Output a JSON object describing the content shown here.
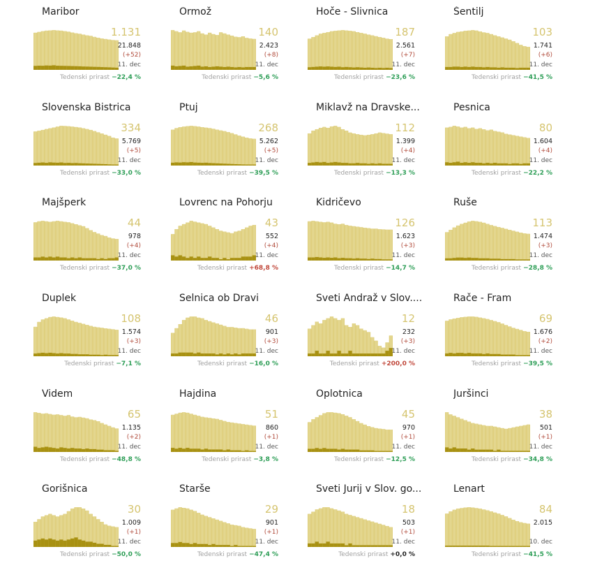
{
  "colors": {
    "bar_area": "#d9c767",
    "bar_front": "#e3d690",
    "bar_new": "#a89112",
    "active_number": "#d5c46f",
    "decrease": "#2e9e57",
    "increase": "#c0473a"
  },
  "labels": {
    "weekly_prefix": "Tedenski prirast"
  },
  "chart_data": [
    {
      "type": "bar",
      "title": "Maribor",
      "active": "1.131",
      "total": "21.848",
      "delta": "(+52)",
      "date": "11. dec",
      "weekly": "−22,4 %",
      "trend": "down",
      "values": [
        1420,
        1450,
        1480,
        1500,
        1510,
        1520,
        1510,
        1500,
        1480,
        1460,
        1430,
        1400,
        1380,
        1350,
        1320,
        1300,
        1260,
        1230,
        1200,
        1180,
        1160,
        1140,
        1131
      ],
      "new": [
        95,
        100,
        98,
        105,
        102,
        110,
        99,
        97,
        95,
        93,
        90,
        88,
        85,
        80,
        78,
        75,
        72,
        70,
        66,
        63,
        60,
        56,
        52
      ]
    },
    {
      "type": "bar",
      "title": "Ormož",
      "active": "140",
      "total": "2.423",
      "delta": "(+8)",
      "date": "11. dec",
      "weekly": "−5,6 %",
      "trend": "down",
      "values": [
        180,
        175,
        170,
        178,
        172,
        168,
        170,
        175,
        165,
        160,
        168,
        162,
        158,
        170,
        165,
        160,
        155,
        150,
        148,
        152,
        145,
        142,
        140
      ],
      "new": [
        12,
        10,
        11,
        12,
        9,
        10,
        11,
        12,
        9,
        10,
        8,
        9,
        10,
        9,
        8,
        9,
        8,
        7,
        8,
        7,
        8,
        8,
        8
      ]
    },
    {
      "type": "bar",
      "title": "Hoče - Slivnica",
      "active": "187",
      "total": "2.561",
      "delta": "(+7)",
      "date": "11. dec",
      "weekly": "−23,6 %",
      "trend": "down",
      "values": [
        190,
        200,
        210,
        220,
        225,
        230,
        235,
        238,
        240,
        242,
        240,
        238,
        235,
        230,
        225,
        220,
        215,
        210,
        205,
        200,
        195,
        190,
        187
      ],
      "new": [
        10,
        11,
        12,
        13,
        12,
        13,
        12,
        11,
        12,
        10,
        11,
        10,
        9,
        10,
        9,
        8,
        9,
        8,
        7,
        8,
        7,
        8,
        7
      ]
    },
    {
      "type": "bar",
      "title": "Šentilj",
      "active": "103",
      "total": "1.741",
      "delta": "(+6)",
      "date": "11. dec",
      "weekly": "−41,5 %",
      "trend": "down",
      "values": [
        150,
        160,
        165,
        170,
        172,
        175,
        176,
        178,
        176,
        172,
        168,
        165,
        160,
        155,
        150,
        145,
        140,
        135,
        128,
        120,
        112,
        106,
        103
      ],
      "new": [
        8,
        8,
        9,
        9,
        8,
        9,
        8,
        9,
        8,
        8,
        7,
        8,
        7,
        7,
        6,
        7,
        6,
        6,
        6,
        5,
        6,
        6,
        6
      ]
    },
    {
      "type": "bar",
      "title": "Slovenska Bistrica",
      "active": "334",
      "total": "5.769",
      "delta": "(+5)",
      "date": "11. dec",
      "weekly": "−33,0 %",
      "trend": "down",
      "values": [
        420,
        430,
        440,
        450,
        460,
        470,
        480,
        490,
        488,
        485,
        480,
        475,
        470,
        460,
        450,
        440,
        425,
        410,
        395,
        380,
        365,
        345,
        334
      ],
      "new": [
        20,
        22,
        24,
        21,
        25,
        23,
        22,
        24,
        20,
        21,
        19,
        20,
        18,
        17,
        16,
        15,
        14,
        13,
        12,
        11,
        9,
        7,
        5
      ]
    },
    {
      "type": "bar",
      "title": "Ptuj",
      "active": "268",
      "total": "5.262",
      "delta": "(+5)",
      "date": "11. dec",
      "weekly": "−39,5 %",
      "trend": "down",
      "values": [
        360,
        375,
        385,
        390,
        395,
        398,
        395,
        390,
        385,
        380,
        375,
        368,
        360,
        352,
        345,
        335,
        325,
        312,
        300,
        290,
        280,
        272,
        268
      ],
      "new": [
        18,
        20,
        19,
        21,
        20,
        22,
        19,
        18,
        17,
        18,
        16,
        15,
        14,
        13,
        12,
        11,
        10,
        9,
        8,
        7,
        6,
        6,
        5
      ]
    },
    {
      "type": "bar",
      "title": "Miklavž na Dravske...",
      "active": "112",
      "total": "1.399",
      "delta": "(+4)",
      "date": "11. dec",
      "weekly": "−13,3 %",
      "trend": "down",
      "values": [
        115,
        125,
        130,
        135,
        138,
        135,
        140,
        142,
        138,
        130,
        125,
        118,
        115,
        112,
        110,
        108,
        110,
        112,
        115,
        118,
        116,
        114,
        112
      ],
      "new": [
        6,
        7,
        8,
        7,
        8,
        6,
        7,
        8,
        7,
        6,
        6,
        5,
        5,
        6,
        5,
        5,
        4,
        5,
        4,
        5,
        4,
        4,
        4
      ]
    },
    {
      "type": "bar",
      "title": "Pesnica",
      "active": "80",
      "total": "1.604",
      "delta": "(+4)",
      "date": "11. dec",
      "weekly": "−22,2 %",
      "trend": "down",
      "values": [
        110,
        112,
        115,
        113,
        110,
        112,
        108,
        110,
        106,
        108,
        105,
        102,
        104,
        100,
        98,
        96,
        92,
        90,
        88,
        86,
        84,
        82,
        80
      ],
      "new": [
        6,
        5,
        6,
        7,
        5,
        6,
        5,
        6,
        5,
        5,
        4,
        5,
        4,
        5,
        4,
        4,
        4,
        3,
        4,
        4,
        3,
        4,
        4
      ]
    },
    {
      "type": "bar",
      "title": "Majšperk",
      "active": "44",
      "total": "978",
      "delta": "(+4)",
      "date": "11. dec",
      "weekly": "−37,0 %",
      "trend": "down",
      "values": [
        78,
        80,
        81,
        80,
        79,
        80,
        81,
        80,
        79,
        78,
        76,
        74,
        72,
        70,
        66,
        62,
        58,
        55,
        52,
        50,
        47,
        45,
        44
      ],
      "new": [
        4,
        4,
        5,
        4,
        5,
        4,
        5,
        4,
        4,
        3,
        4,
        3,
        4,
        3,
        3,
        3,
        3,
        2,
        3,
        2,
        3,
        3,
        4
      ]
    },
    {
      "type": "bar",
      "title": "Lovrenc na Pohorju",
      "active": "43",
      "total": "552",
      "delta": "(+4)",
      "date": "11. dec",
      "weekly": "+68,8 %",
      "trend": "up",
      "values": [
        32,
        38,
        42,
        44,
        46,
        48,
        47,
        46,
        45,
        44,
        42,
        40,
        38,
        36,
        35,
        34,
        33,
        35,
        36,
        38,
        40,
        42,
        43
      ],
      "new": [
        4,
        3,
        4,
        3,
        2,
        3,
        2,
        3,
        2,
        2,
        3,
        2,
        2,
        1,
        2,
        1,
        2,
        2,
        2,
        3,
        3,
        3,
        4
      ]
    },
    {
      "type": "bar",
      "title": "Kidričevo",
      "active": "126",
      "total": "1.623",
      "delta": "(+3)",
      "date": "11. dec",
      "weekly": "−14,7 %",
      "trend": "down",
      "values": [
        160,
        162,
        160,
        158,
        156,
        158,
        155,
        150,
        148,
        150,
        145,
        142,
        140,
        138,
        136,
        134,
        132,
        130,
        130,
        128,
        127,
        126,
        126
      ],
      "new": [
        8,
        8,
        9,
        8,
        7,
        8,
        7,
        8,
        6,
        7,
        6,
        6,
        5,
        6,
        5,
        5,
        4,
        5,
        4,
        4,
        3,
        3,
        3
      ]
    },
    {
      "type": "bar",
      "title": "Ruše",
      "active": "113",
      "total": "1.474",
      "delta": "(+3)",
      "date": "11. dec",
      "weekly": "−28,8 %",
      "trend": "down",
      "values": [
        120,
        130,
        140,
        148,
        155,
        160,
        165,
        168,
        166,
        164,
        160,
        155,
        150,
        146,
        142,
        138,
        134,
        130,
        126,
        122,
        118,
        115,
        113
      ],
      "new": [
        6,
        6,
        7,
        8,
        8,
        7,
        8,
        7,
        7,
        6,
        6,
        6,
        5,
        5,
        5,
        4,
        4,
        4,
        4,
        3,
        3,
        3,
        3
      ]
    },
    {
      "type": "bar",
      "title": "Duplek",
      "active": "108",
      "total": "1.574",
      "delta": "(+3)",
      "date": "11. dec",
      "weekly": "−7,1 %",
      "trend": "down",
      "values": [
        120,
        140,
        150,
        155,
        160,
        162,
        160,
        158,
        155,
        150,
        145,
        140,
        136,
        132,
        128,
        124,
        120,
        118,
        116,
        114,
        112,
        110,
        108
      ],
      "new": [
        7,
        8,
        9,
        8,
        9,
        8,
        7,
        8,
        7,
        7,
        6,
        6,
        5,
        5,
        5,
        4,
        4,
        4,
        3,
        4,
        3,
        3,
        3
      ]
    },
    {
      "type": "bar",
      "title": "Selnica ob Dravi",
      "active": "46",
      "total": "901",
      "delta": "(+3)",
      "date": "11. dec",
      "weekly": "−16,0 %",
      "trend": "down",
      "values": [
        40,
        48,
        55,
        62,
        66,
        68,
        68,
        66,
        65,
        62,
        60,
        58,
        56,
        54,
        52,
        50,
        50,
        49,
        48,
        48,
        47,
        46,
        46
      ],
      "new": [
        3,
        3,
        4,
        4,
        4,
        4,
        3,
        4,
        3,
        3,
        3,
        3,
        2,
        3,
        2,
        3,
        2,
        3,
        2,
        3,
        3,
        3,
        3
      ]
    },
    {
      "type": "bar",
      "title": "Sveti Andraž v Slov....",
      "active": "12",
      "total": "232",
      "delta": "(+3)",
      "date": "11. dec",
      "weekly": "+200,0 %",
      "trend": "up",
      "values": [
        16,
        18,
        20,
        19,
        21,
        22,
        23,
        22,
        21,
        22,
        18,
        17,
        19,
        18,
        16,
        15,
        14,
        11,
        9,
        6,
        5,
        8,
        12
      ],
      "new": [
        1,
        1,
        2,
        1,
        1,
        2,
        1,
        1,
        2,
        1,
        1,
        2,
        1,
        1,
        1,
        1,
        1,
        1,
        1,
        1,
        1,
        2,
        3
      ]
    },
    {
      "type": "bar",
      "title": "Rače - Fram",
      "active": "69",
      "total": "1.676",
      "delta": "(+2)",
      "date": "11. dec",
      "weekly": "−39,5 %",
      "trend": "down",
      "values": [
        100,
        104,
        106,
        108,
        110,
        111,
        112,
        112,
        111,
        109,
        107,
        105,
        102,
        99,
        96,
        92,
        88,
        84,
        80,
        77,
        74,
        71,
        69
      ],
      "new": [
        5,
        6,
        5,
        6,
        6,
        5,
        6,
        5,
        5,
        5,
        4,
        5,
        4,
        4,
        4,
        3,
        3,
        3,
        3,
        2,
        2,
        2,
        2
      ]
    },
    {
      "type": "bar",
      "title": "Videm",
      "active": "65",
      "total": "1.135",
      "delta": "(+2)",
      "date": "11. dec",
      "weekly": "−48,8 %",
      "trend": "down",
      "values": [
        110,
        108,
        106,
        107,
        105,
        103,
        104,
        102,
        100,
        102,
        98,
        96,
        97,
        95,
        93,
        90,
        88,
        85,
        80,
        76,
        72,
        68,
        65
      ],
      "new": [
        9,
        7,
        8,
        9,
        8,
        7,
        6,
        8,
        7,
        6,
        7,
        6,
        6,
        5,
        6,
        5,
        5,
        4,
        4,
        3,
        3,
        3,
        2
      ]
    },
    {
      "type": "bar",
      "title": "Hajdina",
      "active": "51",
      "total": "860",
      "delta": "(+1)",
      "date": "11. dec",
      "weekly": "−3,8 %",
      "trend": "down",
      "values": [
        72,
        74,
        76,
        77,
        76,
        74,
        72,
        70,
        68,
        67,
        66,
        65,
        64,
        62,
        60,
        58,
        57,
        56,
        55,
        54,
        53,
        52,
        51
      ],
      "new": [
        5,
        4,
        5,
        4,
        5,
        4,
        4,
        4,
        3,
        4,
        3,
        3,
        3,
        3,
        2,
        3,
        2,
        2,
        2,
        1,
        2,
        1,
        1
      ]
    },
    {
      "type": "bar",
      "title": "Oplotnica",
      "active": "45",
      "total": "970",
      "delta": "(+1)",
      "date": "11. dec",
      "weekly": "−12,5 %",
      "trend": "down",
      "values": [
        60,
        66,
        70,
        74,
        78,
        80,
        80,
        79,
        78,
        76,
        73,
        70,
        66,
        62,
        58,
        55,
        52,
        50,
        48,
        47,
        46,
        45,
        45
      ],
      "new": [
        4,
        4,
        5,
        4,
        5,
        4,
        4,
        4,
        3,
        4,
        3,
        3,
        3,
        3,
        2,
        2,
        2,
        2,
        1,
        1,
        1,
        1,
        1
      ]
    },
    {
      "type": "bar",
      "title": "Juršinci",
      "active": "38",
      "total": "501",
      "delta": "(+1)",
      "date": "11. dec",
      "weekly": "−34,8 %",
      "trend": "down",
      "values": [
        55,
        52,
        50,
        48,
        46,
        44,
        42,
        40,
        39,
        38,
        37,
        36,
        36,
        35,
        34,
        33,
        32,
        33,
        34,
        35,
        36,
        37,
        38
      ],
      "new": [
        4,
        3,
        4,
        3,
        3,
        3,
        2,
        3,
        2,
        2,
        2,
        2,
        2,
        1,
        2,
        1,
        1,
        1,
        1,
        1,
        1,
        1,
        1
      ]
    },
    {
      "type": "bar",
      "title": "Gorišnica",
      "active": "30",
      "total": "1.009",
      "delta": "(+1)",
      "date": "11. dec",
      "weekly": "−50,0 %",
      "trend": "down",
      "values": [
        38,
        42,
        46,
        48,
        50,
        48,
        46,
        48,
        50,
        54,
        58,
        60,
        60,
        58,
        55,
        50,
        46,
        42,
        38,
        34,
        32,
        31,
        30
      ],
      "new": [
        6,
        7,
        8,
        7,
        8,
        7,
        6,
        7,
        6,
        7,
        8,
        9,
        7,
        6,
        5,
        5,
        4,
        3,
        3,
        2,
        2,
        1,
        1
      ]
    },
    {
      "type": "bar",
      "title": "Starše",
      "active": "29",
      "total": "901",
      "delta": "(+1)",
      "date": "11. dec",
      "weekly": "−47,4 %",
      "trend": "down",
      "values": [
        60,
        62,
        64,
        63,
        62,
        60,
        58,
        55,
        52,
        50,
        48,
        46,
        44,
        42,
        40,
        38,
        36,
        35,
        34,
        32,
        31,
        30,
        29
      ],
      "new": [
        4,
        4,
        5,
        4,
        4,
        3,
        4,
        3,
        3,
        3,
        2,
        3,
        2,
        2,
        2,
        2,
        1,
        2,
        1,
        1,
        1,
        1,
        1
      ]
    },
    {
      "type": "bar",
      "title": "Sveti Jurij v Slov. go...",
      "active": "18",
      "total": "503",
      "delta": "(+1)",
      "date": "11. dec",
      "weekly": "+0,0 %",
      "trend": "flat",
      "values": [
        30,
        32,
        34,
        35,
        36,
        36,
        35,
        34,
        33,
        32,
        30,
        29,
        28,
        27,
        26,
        25,
        24,
        23,
        22,
        21,
        20,
        19,
        18
      ],
      "new": [
        2,
        2,
        3,
        2,
        2,
        3,
        2,
        2,
        2,
        2,
        1,
        2,
        1,
        1,
        1,
        1,
        1,
        1,
        1,
        1,
        1,
        1,
        1
      ]
    },
    {
      "type": "bar",
      "title": "Lenart",
      "active": "84",
      "total": "2.015",
      "delta": "",
      "date": "10. dec",
      "weekly": "−41,5 %",
      "trend": "down",
      "values": [
        120,
        128,
        134,
        138,
        140,
        142,
        143,
        142,
        140,
        138,
        135,
        132,
        128,
        124,
        120,
        115,
        110,
        104,
        98,
        93,
        89,
        86,
        84
      ],
      "new": [
        3,
        3,
        3,
        3,
        3,
        3,
        3,
        3,
        3,
        3,
        3,
        3,
        2,
        2,
        2,
        2,
        2,
        2,
        2,
        2,
        2,
        2,
        2
      ]
    }
  ]
}
